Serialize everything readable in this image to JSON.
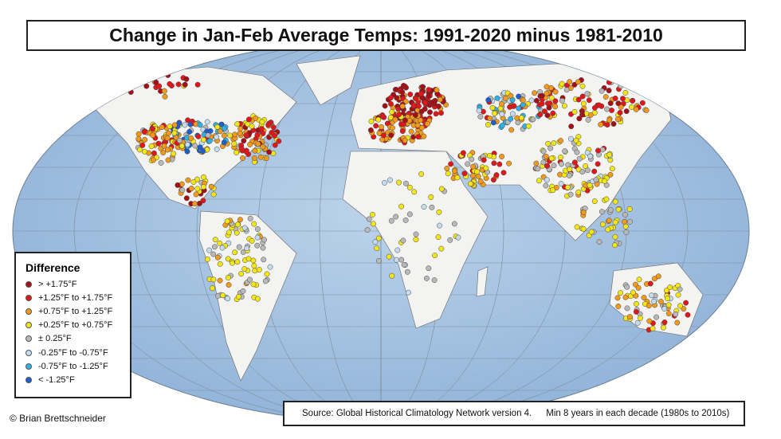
{
  "title": "Change in Jan-Feb Average Temps: 1991-2020 minus 1981-2010",
  "legend": {
    "title": "Difference",
    "items": [
      {
        "label": "> +1.75°F",
        "color": "#a50f15"
      },
      {
        "label": "+1.25°F to +1.75°F",
        "color": "#e3161c"
      },
      {
        "label": "+0.75°F to +1.25°F",
        "color": "#f29a1b"
      },
      {
        "label": "+0.25°F to +0.75°F",
        "color": "#f4e616"
      },
      {
        "label": "± 0.25°F",
        "color": "#b9b9b9"
      },
      {
        "label": "-0.25°F to -0.75°F",
        "color": "#c4dcf0"
      },
      {
        "label": "-0.75°F to -1.25°F",
        "color": "#2fb2e6"
      },
      {
        "label": "< -1.25°F",
        "color": "#1d5fd0"
      }
    ]
  },
  "credit": "© Brian Brettschneider",
  "source": {
    "text": "Source: Global Historical Climatology Network version 4.",
    "note": "Min 8 years in each decade (1980s to 2010s)"
  },
  "colors": {
    "ocean": "#a9c6e3",
    "land": "#f3f3f1",
    "grid": "#7f8fa0"
  }
}
